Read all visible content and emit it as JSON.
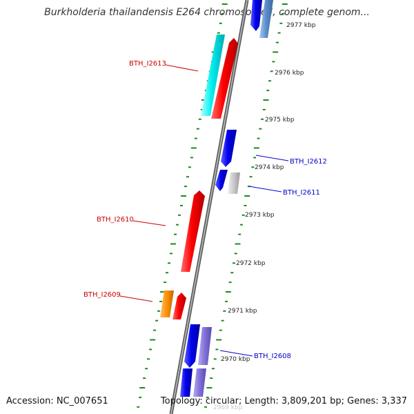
{
  "title": "Burkholderia thailandensis E264 chromosome I, complete genom...",
  "footer": {
    "accession": "Accession: NC_007651",
    "summary": "Topology: circular; Length: 3,809,201 bp; Genes: 3,337"
  },
  "colors": {
    "backbone": "#888888",
    "tick_dots": "#1a8a1a",
    "forward_label": "#cc0000",
    "reverse_label": "#0000cc"
  },
  "ticks": [
    {
      "label": "2977 kbp",
      "pos_kbp": 2977
    },
    {
      "label": "2976 kbp",
      "pos_kbp": 2976
    },
    {
      "label": "2975 kbp",
      "pos_kbp": 2975
    },
    {
      "label": "2974 kbp",
      "pos_kbp": 2974
    },
    {
      "label": "2973 kbp",
      "pos_kbp": 2973
    },
    {
      "label": "2972 kbp",
      "pos_kbp": 2972
    },
    {
      "label": "2971 kbp",
      "pos_kbp": 2971
    },
    {
      "label": "2970 kbp",
      "pos_kbp": 2970
    },
    {
      "label": "2969 kbp",
      "pos_kbp": 2969
    }
  ],
  "gene_labels": [
    {
      "name": "BTH_I2613",
      "strand": "forward"
    },
    {
      "name": "BTH_I2612",
      "strand": "reverse"
    },
    {
      "name": "BTH_I2611",
      "strand": "reverse"
    },
    {
      "name": "BTH_I2610",
      "strand": "forward"
    },
    {
      "name": "BTH_I2609",
      "strand": "forward"
    },
    {
      "name": "BTH_I2608",
      "strand": "reverse"
    }
  ]
}
